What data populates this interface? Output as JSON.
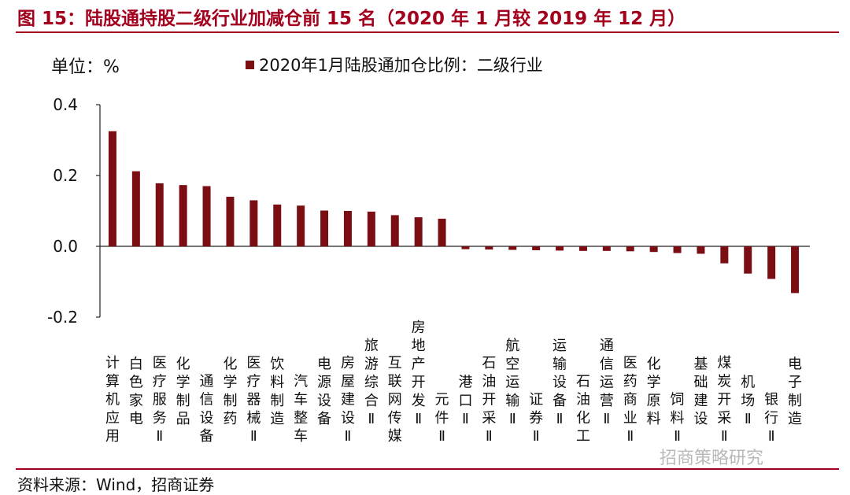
{
  "title": "图 15：陆股通持股二级行业加减仓前 15 名（2020 年 1 月较 2019 年 12 月）",
  "unit_label": "单位：%",
  "source": "资料来源：Wind，招商证券",
  "watermark": "招商策略研究",
  "colors": {
    "bar": "#7a0e13",
    "rule": "#a3001e"
  },
  "chart_data": {
    "type": "bar",
    "title": "图 15：陆股通持股二级行业加减仓前 15 名（2020 年 1 月较 2019 年 12 月）",
    "ylabel": "单位：%",
    "ylim": [
      -0.2,
      0.4
    ],
    "yticks": [
      "0.4",
      "0.2",
      "0.0",
      "-0.2"
    ],
    "legend_position": "top",
    "grid": false,
    "categories": [
      "计算机应用",
      "白色家电",
      "医疗服务Ⅱ",
      "化学制品",
      "通信设备",
      "化学制药",
      "医疗器械Ⅱ",
      "饮料制造",
      "汽车整车",
      "电源设备",
      "房屋建设Ⅱ",
      "旅游综合Ⅱ",
      "互联网传媒",
      "房地产开发Ⅱ",
      "元件Ⅱ",
      "港口Ⅱ",
      "石油开采Ⅱ",
      "航空运输Ⅱ",
      "证券Ⅱ",
      "运输设备Ⅱ",
      "石油化工",
      "通信运营Ⅱ",
      "医药商业Ⅱ",
      "化学原料",
      "饲料Ⅱ",
      "基础建设",
      "煤炭开采Ⅱ",
      "机场Ⅱ",
      "银行Ⅱ",
      "电子制造"
    ],
    "series": [
      {
        "name": "2020年1月陆股通加仓比例：二级行业",
        "values": [
          0.325,
          0.212,
          0.178,
          0.173,
          0.17,
          0.14,
          0.13,
          0.118,
          0.115,
          0.101,
          0.1,
          0.098,
          0.088,
          0.082,
          0.078,
          -0.008,
          -0.009,
          -0.01,
          -0.011,
          -0.012,
          -0.013,
          -0.013,
          -0.014,
          -0.016,
          -0.019,
          -0.021,
          -0.048,
          -0.077,
          -0.092,
          -0.132
        ]
      }
    ]
  }
}
